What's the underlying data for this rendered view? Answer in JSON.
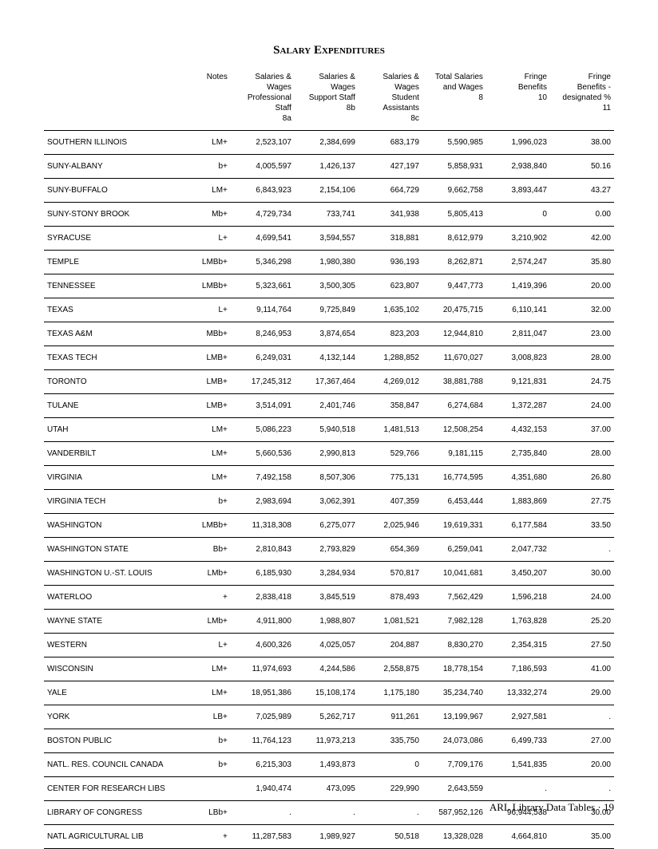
{
  "title": "Salary Expenditures",
  "footer": "ARL Library Data Tables · 19",
  "headers": [
    "",
    "Notes",
    "Salaries &\nWages\nProfessional\nStaff\n8a",
    "Salaries &\nWages\nSupport Staff\n8b",
    "Salaries &\nWages\nStudent\nAssistants\n8c",
    "Total Salaries\nand Wages\n8",
    "Fringe\nBenefits\n10",
    "Fringe\nBenefits -\ndesignated %\n11"
  ],
  "rows": [
    [
      "SOUTHERN ILLINOIS",
      "LM+",
      "2,523,107",
      "2,384,699",
      "683,179",
      "5,590,985",
      "1,996,023",
      "38.00"
    ],
    [
      "SUNY-ALBANY",
      "b+",
      "4,005,597",
      "1,426,137",
      "427,197",
      "5,858,931",
      "2,938,840",
      "50.16"
    ],
    [
      "SUNY-BUFFALO",
      "LM+",
      "6,843,923",
      "2,154,106",
      "664,729",
      "9,662,758",
      "3,893,447",
      "43.27"
    ],
    [
      "SUNY-STONY BROOK",
      "Mb+",
      "4,729,734",
      "733,741",
      "341,938",
      "5,805,413",
      "0",
      "0.00"
    ],
    [
      "SYRACUSE",
      "L+",
      "4,699,541",
      "3,594,557",
      "318,881",
      "8,612,979",
      "3,210,902",
      "42.00"
    ],
    [
      "TEMPLE",
      "LMBb+",
      "5,346,298",
      "1,980,380",
      "936,193",
      "8,262,871",
      "2,574,247",
      "35.80"
    ],
    [
      "TENNESSEE",
      "LMBb+",
      "5,323,661",
      "3,500,305",
      "623,807",
      "9,447,773",
      "1,419,396",
      "20.00"
    ],
    [
      "TEXAS",
      "L+",
      "9,114,764",
      "9,725,849",
      "1,635,102",
      "20,475,715",
      "6,110,141",
      "32.00"
    ],
    [
      "TEXAS A&M",
      "MBb+",
      "8,246,953",
      "3,874,654",
      "823,203",
      "12,944,810",
      "2,811,047",
      "23.00"
    ],
    [
      "TEXAS TECH",
      "LMB+",
      "6,249,031",
      "4,132,144",
      "1,288,852",
      "11,670,027",
      "3,008,823",
      "28.00"
    ],
    [
      "TORONTO",
      "LMB+",
      "17,245,312",
      "17,367,464",
      "4,269,012",
      "38,881,788",
      "9,121,831",
      "24.75"
    ],
    [
      "TULANE",
      "LMB+",
      "3,514,091",
      "2,401,746",
      "358,847",
      "6,274,684",
      "1,372,287",
      "24.00"
    ],
    [
      "UTAH",
      "LM+",
      "5,086,223",
      "5,940,518",
      "1,481,513",
      "12,508,254",
      "4,432,153",
      "37.00"
    ],
    [
      "VANDERBILT",
      "LM+",
      "5,660,536",
      "2,990,813",
      "529,766",
      "9,181,115",
      "2,735,840",
      "28.00"
    ],
    [
      "VIRGINIA",
      "LM+",
      "7,492,158",
      "8,507,306",
      "775,131",
      "16,774,595",
      "4,351,680",
      "26.80"
    ],
    [
      "VIRGINIA TECH",
      "b+",
      "2,983,694",
      "3,062,391",
      "407,359",
      "6,453,444",
      "1,883,869",
      "27.75"
    ],
    [
      "WASHINGTON",
      "LMBb+",
      "11,318,308",
      "6,275,077",
      "2,025,946",
      "19,619,331",
      "6,177,584",
      "33.50"
    ],
    [
      "WASHINGTON STATE",
      "Bb+",
      "2,810,843",
      "2,793,829",
      "654,369",
      "6,259,041",
      "2,047,732",
      "."
    ],
    [
      "WASHINGTON U.-ST. LOUIS",
      "LMb+",
      "6,185,930",
      "3,284,934",
      "570,817",
      "10,041,681",
      "3,450,207",
      "30.00"
    ],
    [
      "WATERLOO",
      "+",
      "2,838,418",
      "3,845,519",
      "878,493",
      "7,562,429",
      "1,596,218",
      "24.00"
    ],
    [
      "WAYNE STATE",
      "LMb+",
      "4,911,800",
      "1,988,807",
      "1,081,521",
      "7,982,128",
      "1,763,828",
      "25.20"
    ],
    [
      "WESTERN",
      "L+",
      "4,600,326",
      "4,025,057",
      "204,887",
      "8,830,270",
      "2,354,315",
      "27.50"
    ],
    [
      "WISCONSIN",
      "LM+",
      "11,974,693",
      "4,244,586",
      "2,558,875",
      "18,778,154",
      "7,186,593",
      "41.00"
    ],
    [
      "YALE",
      "LM+",
      "18,951,386",
      "15,108,174",
      "1,175,180",
      "35,234,740",
      "13,332,274",
      "29.00"
    ],
    [
      "YORK",
      "LB+",
      "7,025,989",
      "5,262,717",
      "911,261",
      "13,199,967",
      "2,927,581",
      "."
    ],
    [
      "BOSTON PUBLIC",
      "b+",
      "11,764,123",
      "11,973,213",
      "335,750",
      "24,073,086",
      "6,499,733",
      "27.00"
    ],
    [
      "NATL. RES. COUNCIL CANADA",
      "b+",
      "6,215,303",
      "1,493,873",
      "0",
      "7,709,176",
      "1,541,835",
      "20.00"
    ],
    [
      "CENTER FOR RESEARCH LIBS",
      "",
      "1,940,474",
      "473,095",
      "229,990",
      "2,643,559",
      ".",
      "."
    ],
    [
      "LIBRARY OF CONGRESS",
      "LBb+",
      ".",
      ".",
      ".",
      "587,952,126",
      "96,944,538",
      "30.00"
    ],
    [
      "NATL AGRICULTURAL LIB",
      "+",
      "11,287,583",
      "1,989,927",
      "50,518",
      "13,328,028",
      "4,664,810",
      "35.00"
    ]
  ]
}
